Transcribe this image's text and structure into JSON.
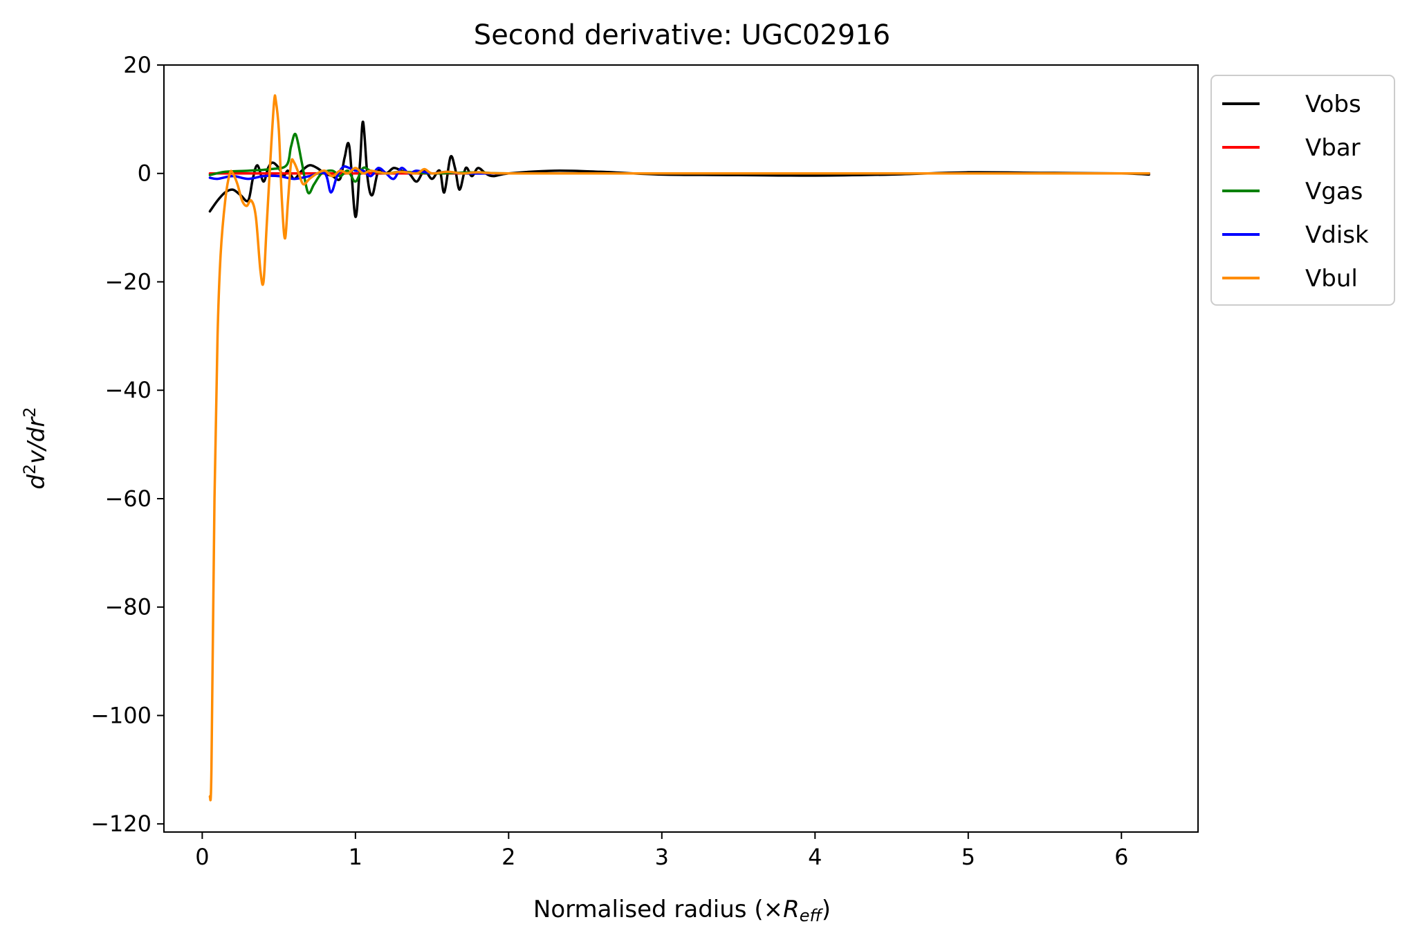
{
  "chart_data": {
    "type": "line",
    "title": "Second derivative: UGC02916",
    "xlabel": {
      "main": "Normalised radius (×",
      "var": "R",
      "sub": "eff",
      "close": ")"
    },
    "ylabel": {
      "d": "d",
      "sup1": "2",
      "v": "v/dr",
      "sup2": "2"
    },
    "xlim": [
      -0.25,
      6.5
    ],
    "ylim": [
      -121.5,
      20
    ],
    "xticks": [
      {
        "v": 0,
        "label": "0"
      },
      {
        "v": 1,
        "label": "1"
      },
      {
        "v": 2,
        "label": "2"
      },
      {
        "v": 3,
        "label": "3"
      },
      {
        "v": 4,
        "label": "4"
      },
      {
        "v": 5,
        "label": "5"
      },
      {
        "v": 6,
        "label": "6"
      }
    ],
    "yticks": [
      {
        "v": 20,
        "label": "20"
      },
      {
        "v": 0,
        "label": "0"
      },
      {
        "v": -20,
        "label": "−20"
      },
      {
        "v": -40,
        "label": "−40"
      },
      {
        "v": -60,
        "label": "−60"
      },
      {
        "v": -80,
        "label": "−80"
      },
      {
        "v": -100,
        "label": "−100"
      },
      {
        "v": -120,
        "label": "−120"
      }
    ],
    "grid": false,
    "legend_position": "outside-top-right",
    "series": [
      {
        "name": "Vobs",
        "color": "#000000",
        "x": [
          0.05,
          0.1,
          0.15,
          0.2,
          0.25,
          0.3,
          0.33,
          0.36,
          0.4,
          0.43,
          0.46,
          0.5,
          0.53,
          0.56,
          0.6,
          0.65,
          0.7,
          0.75,
          0.8,
          0.85,
          0.9,
          0.93,
          0.96,
          1.0,
          1.03,
          1.05,
          1.08,
          1.11,
          1.15,
          1.2,
          1.25,
          1.3,
          1.35,
          1.4,
          1.45,
          1.5,
          1.55,
          1.58,
          1.62,
          1.65,
          1.68,
          1.72,
          1.76,
          1.8,
          1.85,
          1.9,
          2.0,
          2.3,
          2.6,
          3.0,
          3.5,
          4.0,
          4.5,
          5.0,
          5.5,
          6.0,
          6.18
        ],
        "y": [
          -7,
          -5,
          -3.5,
          -3,
          -4,
          -5,
          -1,
          1.5,
          -1.5,
          1,
          2,
          1,
          -0.5,
          0.5,
          -1,
          0.5,
          1.5,
          1,
          0,
          -0.5,
          -1,
          3,
          5,
          -8,
          2,
          9.5,
          -1,
          -4,
          0.5,
          0,
          1,
          0.5,
          0,
          -1.5,
          0.5,
          -1,
          0.5,
          -3.5,
          3,
          1,
          -3,
          1,
          -0.5,
          1,
          0,
          -0.5,
          0,
          0.5,
          0.3,
          -0.2,
          -0.3,
          -0.4,
          -0.2,
          0.2,
          0.1,
          0,
          -0.2
        ]
      },
      {
        "name": "Vbar",
        "color": "#ff0000",
        "x": [
          0.05,
          0.5,
          1.0,
          1.5,
          2.0,
          3.0,
          4.0,
          5.0,
          6.18
        ],
        "y": [
          0,
          0,
          0,
          0,
          0,
          0,
          0,
          0,
          0
        ]
      },
      {
        "name": "Vgas",
        "color": "#008000",
        "x": [
          0.05,
          0.15,
          0.3,
          0.45,
          0.55,
          0.58,
          0.61,
          0.65,
          0.69,
          0.73,
          0.78,
          0.85,
          0.9,
          0.95,
          1.0,
          1.05,
          1.1,
          1.2,
          1.3,
          1.5,
          1.8,
          2.0,
          3.0,
          4.0,
          5.0,
          6.18
        ],
        "y": [
          -0.3,
          0.3,
          0.5,
          0.8,
          1.5,
          5,
          7.2,
          2,
          -3.5,
          -2,
          0,
          0.5,
          -0.5,
          0.5,
          -1.5,
          1,
          0.5,
          0,
          0.3,
          0,
          0.2,
          0,
          0,
          0,
          0,
          0
        ]
      },
      {
        "name": "Vdisk",
        "color": "#0000ff",
        "x": [
          0.05,
          0.1,
          0.2,
          0.3,
          0.4,
          0.5,
          0.6,
          0.7,
          0.8,
          0.84,
          0.88,
          0.92,
          0.96,
          1.0,
          1.05,
          1.1,
          1.15,
          1.2,
          1.25,
          1.3,
          1.35,
          1.4,
          1.5,
          1.6,
          1.7,
          2.0,
          3.0,
          4.0,
          5.0,
          6.18
        ],
        "y": [
          -0.8,
          -1,
          -0.5,
          -1,
          -0.5,
          -0.5,
          -1,
          -0.5,
          0,
          -3.5,
          -0.5,
          1.2,
          1,
          0.5,
          0.5,
          -0.5,
          1,
          0,
          -1,
          1,
          0,
          0.5,
          0,
          0.3,
          0,
          0,
          0,
          0,
          0,
          0
        ]
      },
      {
        "name": "Vbul",
        "color": "#ff8c00",
        "x": [
          0.05,
          0.06,
          0.08,
          0.1,
          0.12,
          0.15,
          0.18,
          0.2,
          0.23,
          0.26,
          0.29,
          0.32,
          0.35,
          0.38,
          0.4,
          0.42,
          0.45,
          0.47,
          0.48,
          0.5,
          0.52,
          0.54,
          0.56,
          0.58,
          0.6,
          0.63,
          0.66,
          0.7,
          0.75,
          0.8,
          0.85,
          0.9,
          0.95,
          1.0,
          1.05,
          1.1,
          1.2,
          1.3,
          1.4,
          1.45,
          1.5,
          1.6,
          1.7,
          1.8,
          2.0,
          3.0,
          4.0,
          5.0,
          6.18
        ],
        "y": [
          -115,
          -110,
          -60,
          -30,
          -15,
          -5,
          0,
          0,
          -2,
          -5,
          -6,
          -5,
          -8,
          -18,
          -20,
          -10,
          5,
          13.5,
          13.5,
          8,
          -5,
          -12,
          -5,
          2,
          2,
          0,
          -2,
          -1,
          0,
          0.5,
          -0.5,
          0.5,
          0,
          1,
          0,
          0.5,
          0,
          0.3,
          0,
          0.8,
          0,
          0.3,
          0,
          0.2,
          0,
          0,
          0,
          0,
          0
        ]
      }
    ]
  }
}
